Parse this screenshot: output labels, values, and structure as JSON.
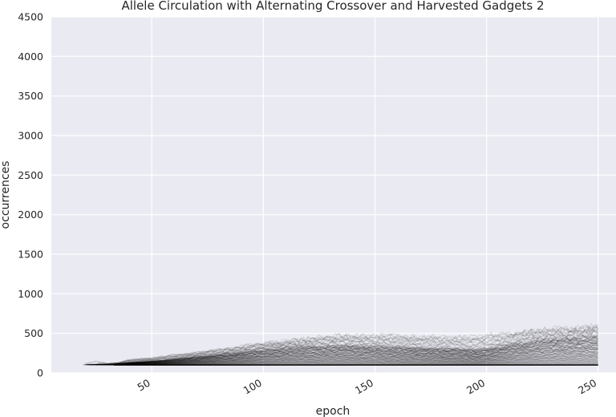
{
  "chart_data": {
    "type": "line",
    "title": "Allele Circulation with Alternating Crossover and Harvested Gadgets 2",
    "xlabel": "epoch",
    "ylabel": "occurrences",
    "xlim": [
      5,
      258
    ],
    "ylim": [
      0,
      4500
    ],
    "xticks": [
      50,
      100,
      150,
      200,
      250
    ],
    "yticks": [
      0,
      500,
      1000,
      1500,
      2000,
      2500,
      3000,
      3500,
      4000,
      4500
    ],
    "x_tick_rotation_deg": 30,
    "grid": true,
    "legend": "none",
    "style": {
      "background": "#eaeaf2",
      "grid_color": "#ffffff",
      "line_color": "#000000",
      "line_alpha": 0.12
    },
    "series_count_approx": 100,
    "band_upper_envelope": {
      "x": [
        19,
        25,
        30,
        35,
        40,
        45,
        50,
        55,
        60,
        65,
        70,
        75,
        80,
        85,
        90,
        95,
        100,
        105,
        110,
        115,
        120,
        125,
        130,
        135,
        140,
        145,
        150,
        155,
        160,
        165,
        170,
        175,
        180,
        185,
        190,
        195,
        200,
        205,
        210,
        215,
        220,
        225,
        230,
        235,
        240,
        245,
        250
      ],
      "y": [
        110,
        160,
        120,
        130,
        170,
        180,
        190,
        210,
        230,
        240,
        260,
        280,
        300,
        310,
        340,
        360,
        380,
        390,
        400,
        420,
        440,
        450,
        460,
        470,
        470,
        470,
        470,
        480,
        470,
        460,
        460,
        460,
        450,
        450,
        450,
        460,
        470,
        490,
        500,
        520,
        540,
        550,
        560,
        560,
        570,
        580,
        600
      ]
    },
    "band_dense_top": {
      "x": [
        33,
        40,
        45,
        50,
        55,
        60,
        65,
        70,
        75,
        80,
        85,
        90,
        95,
        100,
        105,
        110,
        115,
        120,
        125,
        130,
        135,
        140,
        145,
        150,
        155,
        160,
        165,
        170,
        175,
        180,
        185,
        190,
        195,
        200,
        205,
        210,
        215,
        220,
        225,
        230,
        235,
        240,
        245,
        250
      ],
      "y": [
        110,
        130,
        140,
        150,
        160,
        175,
        190,
        205,
        220,
        235,
        250,
        265,
        280,
        300,
        310,
        320,
        330,
        335,
        340,
        345,
        345,
        345,
        340,
        340,
        335,
        330,
        325,
        320,
        315,
        310,
        310,
        305,
        300,
        310,
        330,
        360,
        380,
        400,
        420,
        430,
        440,
        450,
        460,
        470
      ]
    },
    "band_lower_bound": 100
  }
}
